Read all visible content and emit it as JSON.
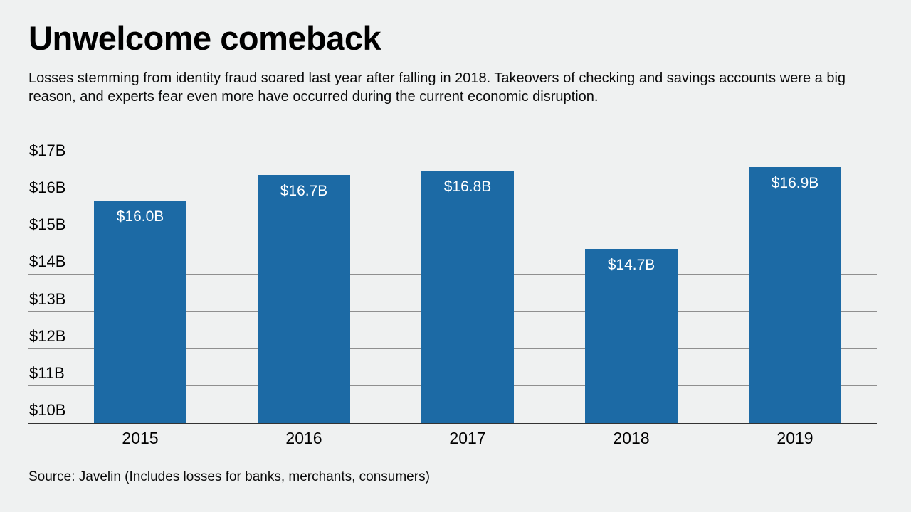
{
  "header": {
    "title": "Unwelcome comeback",
    "subtitle": "Losses stemming from identity fraud soared last year after falling in 2018. Takeovers of checking and savings accounts were a big reason, and experts fear even more have occurred during the current economic disruption."
  },
  "chart_data": {
    "type": "bar",
    "categories": [
      "2015",
      "2016",
      "2017",
      "2018",
      "2019"
    ],
    "values": [
      16.0,
      16.7,
      16.8,
      14.7,
      16.9
    ],
    "value_labels": [
      "$16.0B",
      "$16.7B",
      "$16.8B",
      "$14.7B",
      "$16.9B"
    ],
    "title": "Unwelcome comeback",
    "xlabel": "",
    "ylabel": "",
    "ylim": [
      10,
      17
    ],
    "yticks": [
      10,
      11,
      12,
      13,
      14,
      15,
      16,
      17
    ],
    "ytick_labels": [
      "$10B",
      "$11B",
      "$12B",
      "$13B",
      "$14B",
      "$15B",
      "$16B",
      "$17B"
    ],
    "grid": true,
    "legend": false,
    "bar_color": "#1c6aa5",
    "label_color": "#ffffff"
  },
  "footer": {
    "source": "Source: Javelin (Includes losses for banks, merchants, consumers)"
  },
  "colors": {
    "background": "#eff1f1",
    "gridline": "#8f8f8f",
    "baseline": "#333333",
    "text": "#000000"
  }
}
